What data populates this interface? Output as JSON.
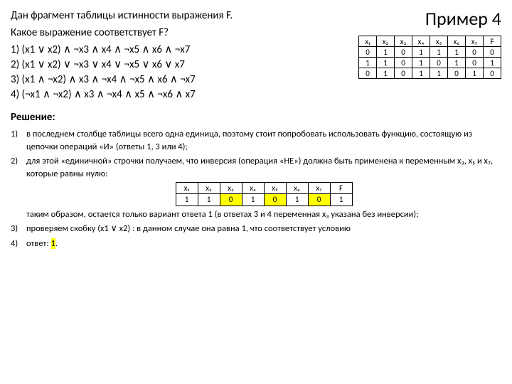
{
  "title_example": "Пример 4",
  "problem": {
    "line1": "Дан фрагмент таблицы истинности выражения F.",
    "line2": "Какое выражение соответствует F?"
  },
  "options": [
    "1)  (x1 ∨ x2) ∧ ¬x3 ∧ x4 ∧ ¬x5 ∧ x6 ∧ ¬x7",
    "2)  (x1 ∨ x2) ∨ ¬x3 ∨ x4 ∨ ¬x5 ∨ x6 ∨ x7",
    "3)  (x1 ∧ ¬x2) ∧ x3 ∧ ¬x4 ∧ ¬x5 ∧ x6 ∧ ¬x7",
    "4)  (¬x1 ∧ ¬x2) ∧ x3 ∧ ¬x4 ∧ x5 ∧ ¬x6 ∧ x7"
  ],
  "truth_table": {
    "headers": [
      "x₁",
      "x₂",
      "x₃",
      "x₄",
      "x₅",
      "x₆",
      "x₇",
      "F"
    ],
    "rows": [
      [
        "0",
        "1",
        "0",
        "1",
        "1",
        "1",
        "0",
        "0"
      ],
      [
        "1",
        "1",
        "0",
        "1",
        "0",
        "1",
        "0",
        "1"
      ],
      [
        "0",
        "1",
        "0",
        "1",
        "1",
        "0",
        "1",
        "0"
      ]
    ]
  },
  "solution_title": "Решение:",
  "solution": {
    "s1_num": "1)",
    "s1": "в последнем столбце таблицы всего одна единица, поэтому стоит попробовать использовать функцию, состоящую из цепочки операций «И» (ответы 1, 3 или 4);",
    "s2_num": "2)",
    "s2a": "для этой «единичной» строчки получаем, что инверсия (операция «НЕ») должна быть применена к переменным x₃, x₅ и x₇, которые равны нулю:",
    "s2_table": {
      "headers": [
        "x₁",
        "x₂",
        "x₃",
        "x₄",
        "x₅",
        "x₆",
        "x₇",
        "F"
      ],
      "row": [
        "1",
        "1",
        "0",
        "1",
        "0",
        "1",
        "0",
        "1"
      ],
      "highlight": [
        2,
        4,
        6
      ]
    },
    "s2b": "таким образом, остается только вариант ответа 1 (в ответах 3 и 4 переменная x₃ указана без инверсии);",
    "s3_num": "3)",
    "s3": "проверяем скобку (x1 ∨ x2) : в данном случае она равна 1, что соответствует условию",
    "s4_num": "4)",
    "s4_pre": "ответ: ",
    "s4_ans": "1",
    "s4_post": "."
  }
}
